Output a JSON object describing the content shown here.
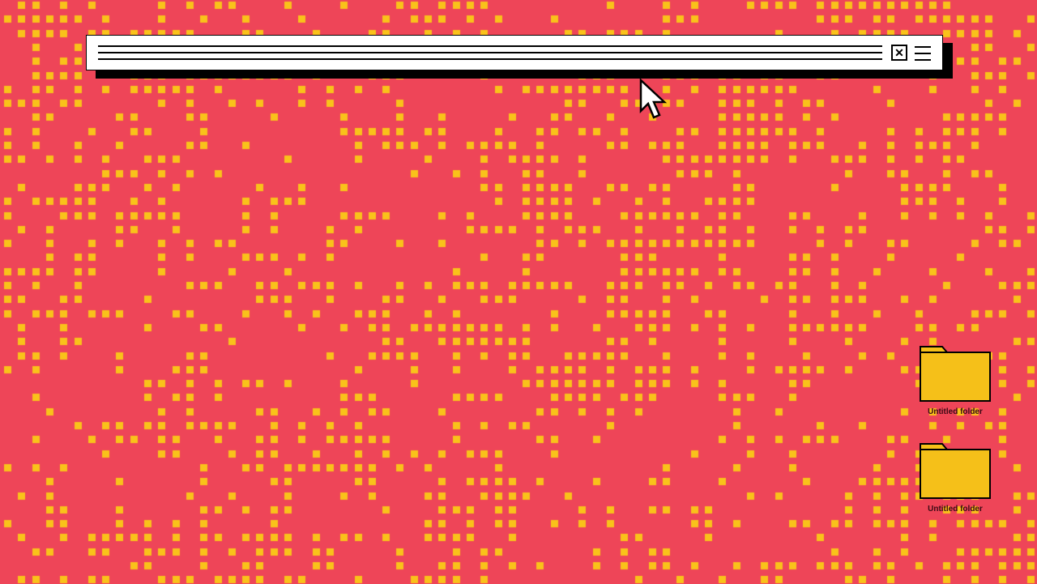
{
  "colors": {
    "background": "#ee4558",
    "pattern": "#f9c21a",
    "folder": "#f5c019",
    "window": "#ffffff",
    "outline": "#000000"
  },
  "window": {
    "close_icon": "close-icon",
    "close_glyph": "✕",
    "menu_icon": "hamburger-menu-icon"
  },
  "desktop": {
    "folders": [
      {
        "label": "Untitled folder"
      },
      {
        "label": "Untitled folder"
      }
    ]
  }
}
